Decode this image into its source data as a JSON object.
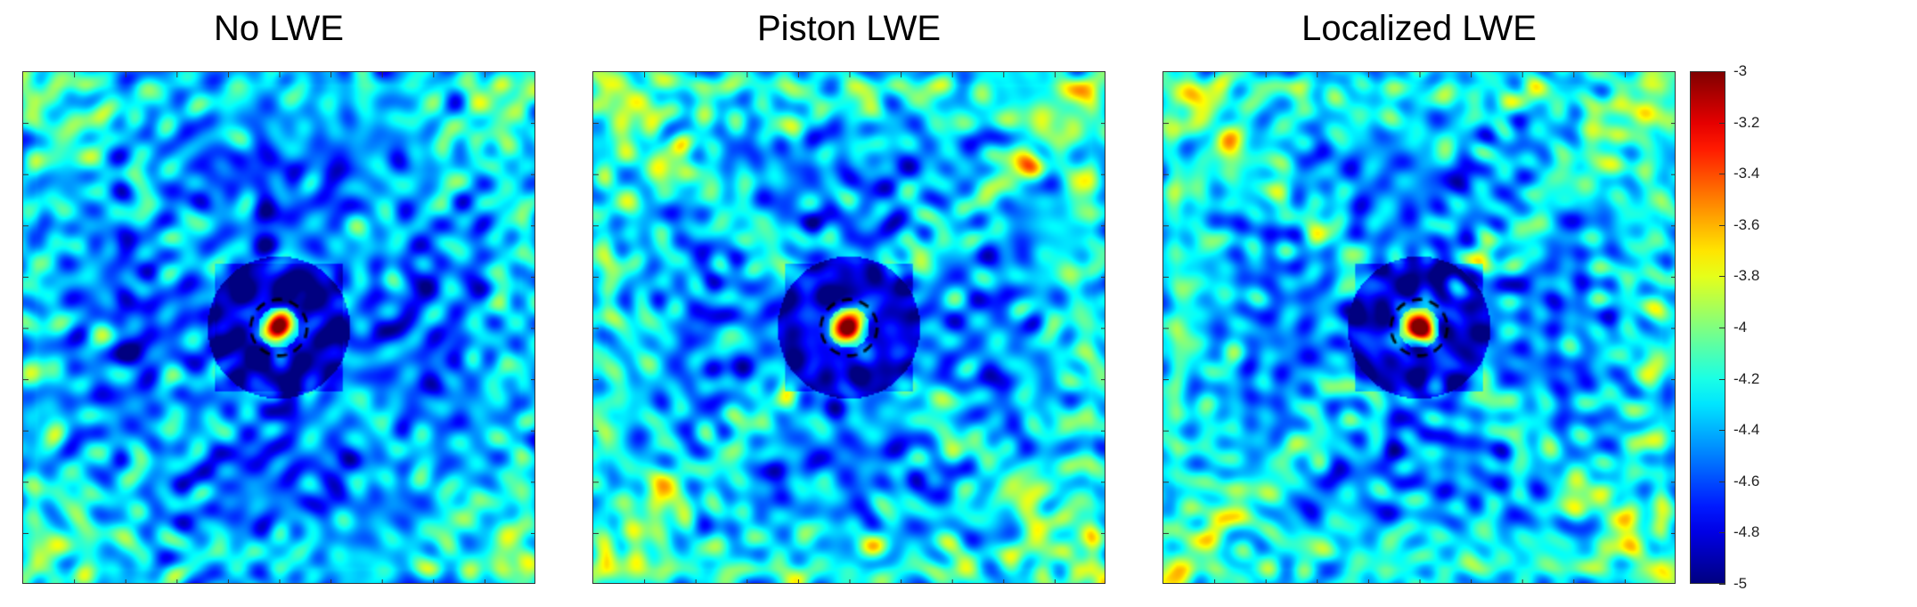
{
  "chart_data": {
    "type": "heatmap",
    "panels": [
      {
        "title": "No LWE",
        "variant": "none"
      },
      {
        "title": "Piston LWE",
        "variant": "piston"
      },
      {
        "title": "Localized LWE",
        "variant": "localized"
      }
    ],
    "colorbar": {
      "min": -5,
      "max": -3,
      "colormap": "jet",
      "ticks": [
        "-3",
        "-3.2",
        "-3.4",
        "-3.6",
        "-3.8",
        "-4",
        "-4.2",
        "-4.4",
        "-4.6",
        "-4.8",
        "-5"
      ]
    }
  }
}
